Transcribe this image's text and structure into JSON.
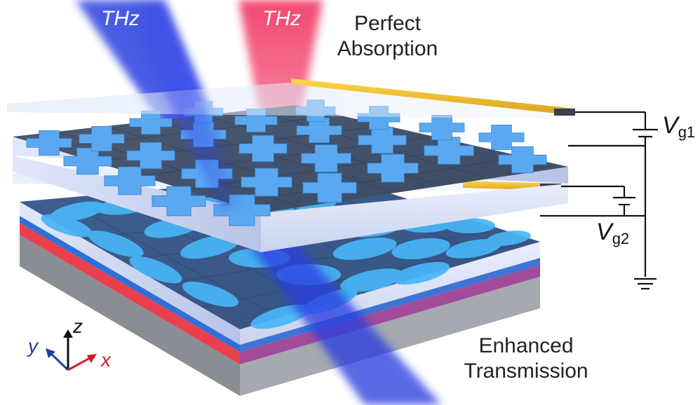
{
  "beams": {
    "incident_label": "THz",
    "reflected_label": "THz"
  },
  "labels": {
    "top_line1": "Perfect",
    "top_line2": "Absorption",
    "bottom_line1": "Enhanced",
    "bottom_line2": "Transmission"
  },
  "circuit": {
    "gate1_symbol": "V",
    "gate1_sub": "g1",
    "gate2_symbol": "V",
    "gate2_sub": "g2"
  },
  "axes": {
    "x": "x",
    "y": "y",
    "z": "z"
  },
  "colors": {
    "incident_beam": "#2b3fe0",
    "reflected_beam": "#f0285a",
    "cross": "#5aa8f0",
    "ellipse": "#49b6f7",
    "red_layer": "#e8404c",
    "blue_layer": "#2f6fd8",
    "gold_electrode": "#f2c230",
    "axis_x": "#d11e1e",
    "axis_y": "#1f3f9f",
    "axis_z": "#111111"
  }
}
